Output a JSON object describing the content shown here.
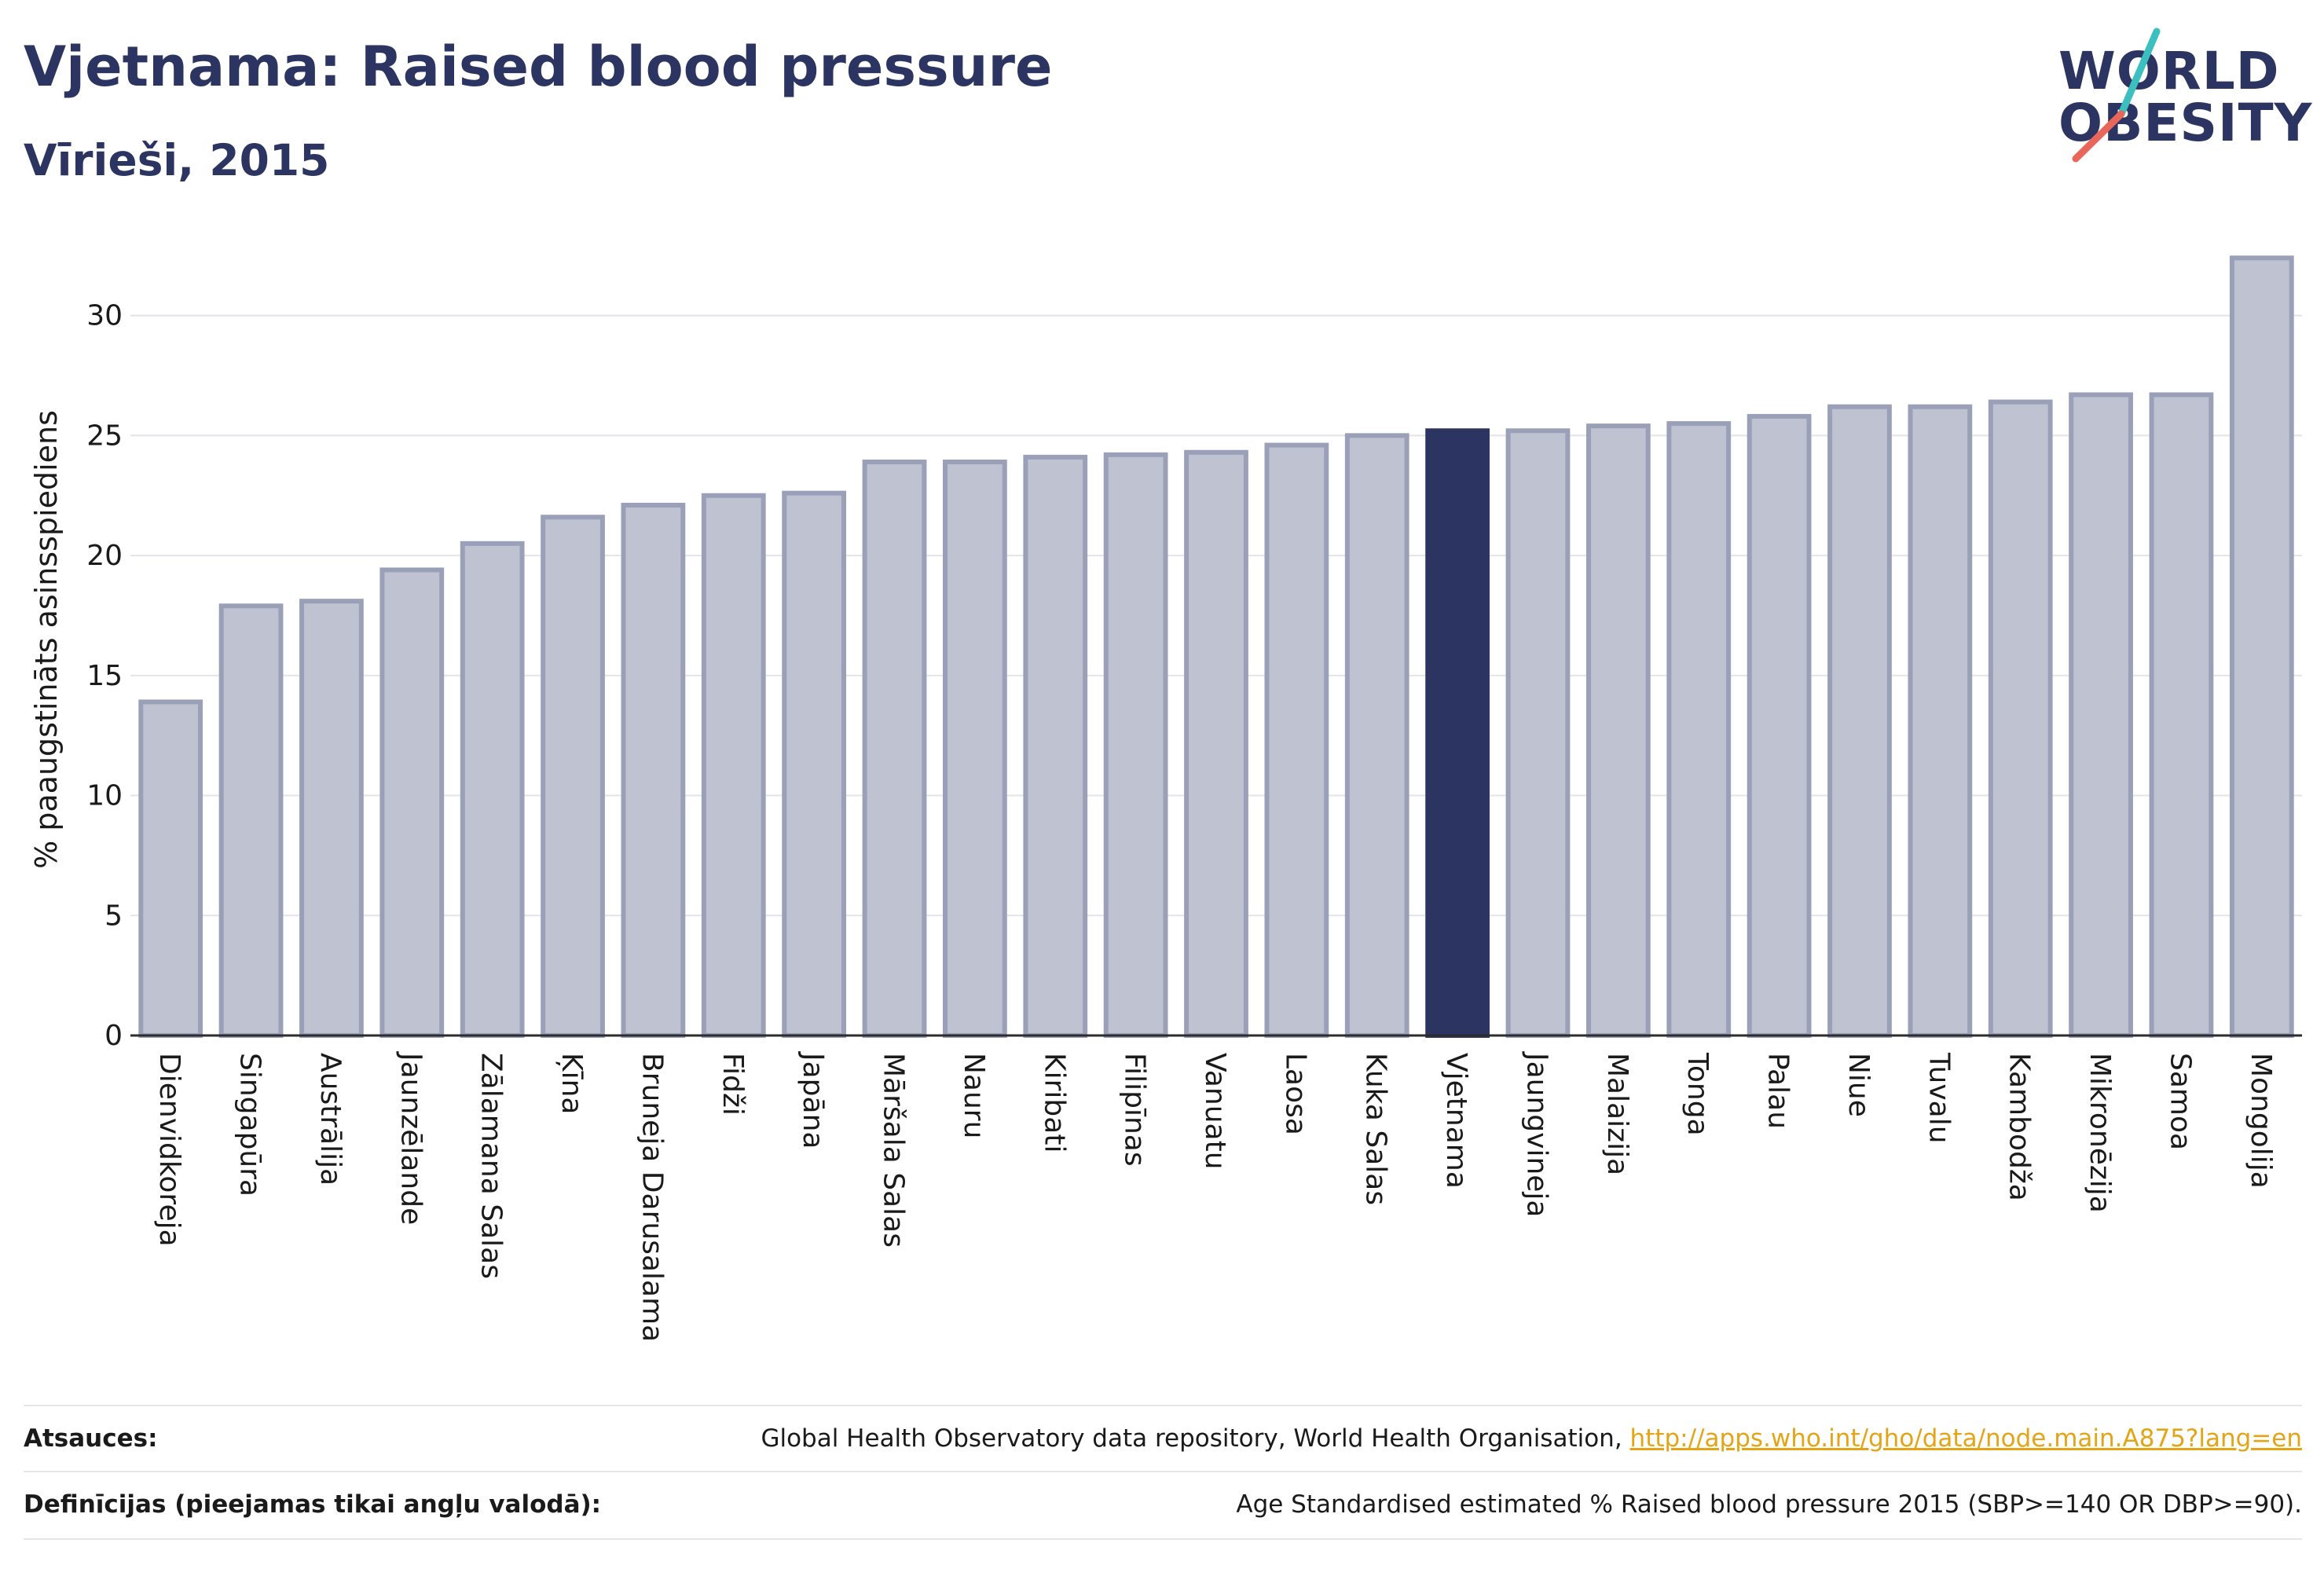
{
  "title": "Vjetnama: Raised blood pressure",
  "subtitle": "Vīrieši, 2015",
  "logo": {
    "line1": "WORLD",
    "line2": "OBESITY"
  },
  "colors": {
    "highlight": "#2c3561",
    "bar": "#bfc2d0",
    "bar_stroke": "#9aa0b8",
    "accent_teal": "#3bbfbf",
    "accent_coral": "#e8675a",
    "link": "#e3a516"
  },
  "chart_data": {
    "type": "bar",
    "ylabel": "% paaugstināts asinsspiediens",
    "ylim": [
      0,
      33
    ],
    "yticks": [
      0,
      5,
      10,
      15,
      20,
      25,
      30
    ],
    "grid": true,
    "highlight": "Vjetnama",
    "categories": [
      "Dienvidkoreja",
      "Singapūra",
      "Austrālija",
      "Jaunzēlande",
      "Zālamana Salas",
      "Ķīna",
      "Bruneja Darusalama",
      "Fidži",
      "Japāna",
      "Māršala Salas",
      "Nauru",
      "Kiribati",
      "Filipīnas",
      "Vanuatu",
      "Laosa",
      "Kuka Salas",
      "Vjetnama",
      "Jaungvineja",
      "Malaizija",
      "Tonga",
      "Palau",
      "Niue",
      "Tuvalu",
      "Kambodža",
      "Mikronēzija",
      "Samoa",
      "Mongolija"
    ],
    "values": [
      13.9,
      17.9,
      18.1,
      19.4,
      20.5,
      21.6,
      22.1,
      22.5,
      22.6,
      23.9,
      23.9,
      24.1,
      24.2,
      24.3,
      24.6,
      25.0,
      25.2,
      25.2,
      25.4,
      25.5,
      25.8,
      26.2,
      26.2,
      26.4,
      26.7,
      26.7,
      32.4
    ]
  },
  "footer": {
    "sources_label": "Atsauces:",
    "sources_text": "Global Health Observatory data repository, World Health Organisation, ",
    "sources_link": "http://apps.who.int/gho/data/node.main.A875?lang=en",
    "definitions_label": "Definīcijas (pieejamas tikai angļu valodā):",
    "definitions_text": "Age Standardised estimated % Raised blood pressure 2015 (SBP>=140 OR DBP>=90)."
  }
}
